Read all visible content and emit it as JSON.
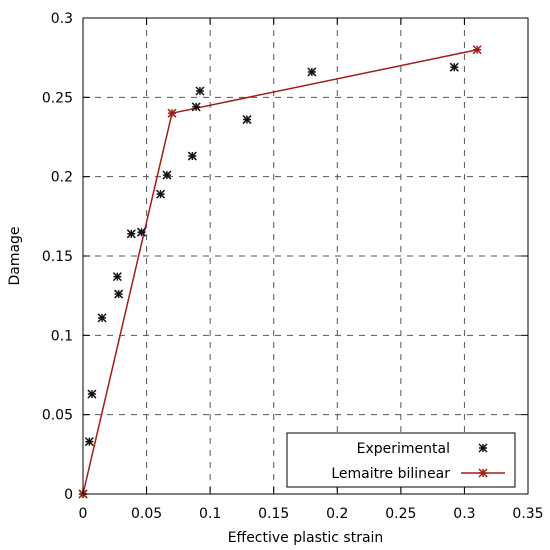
{
  "chart_data": {
    "type": "scatter",
    "title": "",
    "xlabel": "Effective plastic strain",
    "ylabel": "Damage",
    "xlim": [
      0,
      0.35
    ],
    "ylim": [
      0,
      0.3
    ],
    "x_ticks": [
      0,
      0.05,
      0.1,
      0.15,
      0.2,
      0.25,
      0.3,
      0.35
    ],
    "x_tick_labels": [
      "0",
      "0.05",
      "0.1",
      "0.15",
      "0.2",
      "0.25",
      "0.3",
      "0.35"
    ],
    "y_ticks": [
      0,
      0.05,
      0.1,
      0.15,
      0.2,
      0.25,
      0.3
    ],
    "y_tick_labels": [
      "0",
      "0.05",
      "0.1",
      "0.15",
      "0.2",
      "0.25",
      "0.3"
    ],
    "grid": "dashed",
    "legend_position": "bottom-right",
    "series": [
      {
        "name": "Experimental",
        "style": "markers",
        "color": "#111111",
        "x": [
          0.0,
          0.005,
          0.007,
          0.015,
          0.027,
          0.028,
          0.038,
          0.046,
          0.061,
          0.066,
          0.086,
          0.089,
          0.092,
          0.129,
          0.18,
          0.292
        ],
        "y": [
          0.0,
          0.033,
          0.063,
          0.111,
          0.137,
          0.126,
          0.164,
          0.165,
          0.189,
          0.201,
          0.213,
          0.244,
          0.254,
          0.236,
          0.266,
          0.269
        ]
      },
      {
        "name": "Lemaitre bilinear",
        "style": "line+markers",
        "color": "#a01e14",
        "x": [
          0.0,
          0.07,
          0.31
        ],
        "y": [
          0.0,
          0.24,
          0.28
        ]
      }
    ]
  }
}
